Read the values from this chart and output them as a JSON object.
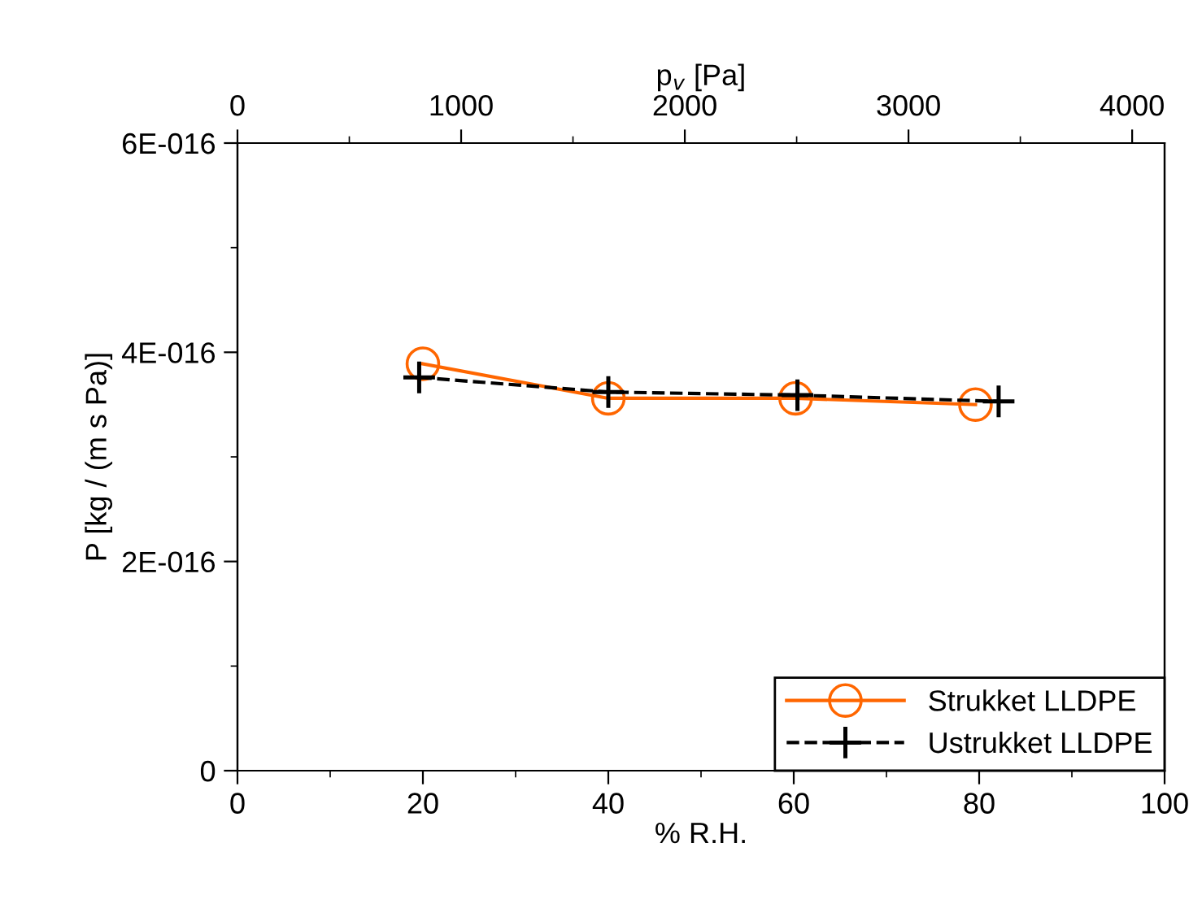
{
  "chart_data": {
    "type": "line",
    "xlabel": "% R.H.",
    "ylabel": "P [kg / (m s Pa)]",
    "x2label": "p$_{v}$ [Pa]",
    "xlim": [
      0,
      100
    ],
    "xticks": [
      0,
      20,
      40,
      60,
      80,
      100
    ],
    "ylim": [
      0,
      6e-16
    ],
    "yticks": [
      {
        "value": 0,
        "label": "0"
      },
      {
        "value": 2e-16,
        "label": "2E-016"
      },
      {
        "value": 4e-16,
        "label": "4E-016"
      },
      {
        "value": 6e-16,
        "label": "6E-016"
      }
    ],
    "x2lim": [
      0,
      4145
    ],
    "x2ticks": [
      0,
      1000,
      2000,
      3000,
      4000
    ],
    "legend": "bottom right",
    "grid": false,
    "series": [
      {
        "name": "Strukket LLDPE",
        "color": "#ff6600",
        "marker": "circle",
        "line_style": "solid",
        "x": [
          20,
          40,
          60.2,
          79.6
        ],
        "values": [
          3.89e-16,
          3.56e-16,
          3.56e-16,
          3.5e-16
        ]
      },
      {
        "name": "Ustrukket LLDPE",
        "color": "#000000",
        "marker": "cross",
        "line_style": "dashed",
        "x": [
          19.6,
          40,
          60.4,
          82.1
        ],
        "values": [
          3.76e-16,
          3.62e-16,
          3.59e-16,
          3.53e-16
        ]
      }
    ]
  }
}
